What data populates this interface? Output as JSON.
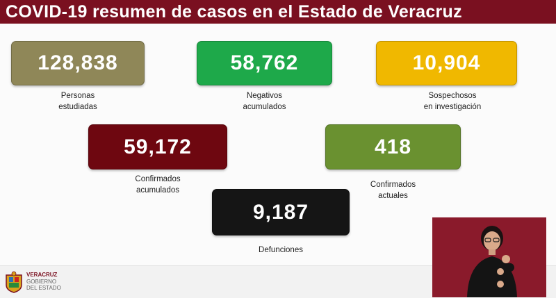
{
  "title": "COVID-19 resumen de casos en el Estado de Veracruz",
  "stats": [
    {
      "key": "estudiadas",
      "value": "128,838",
      "label_line1": "Personas",
      "label_line2": "estudiadas",
      "color": "#8f8758"
    },
    {
      "key": "negativos",
      "value": "58,762",
      "label_line1": "Negativos",
      "label_line2": "acumulados",
      "color": "#1ea94a"
    },
    {
      "key": "sospechosos",
      "value": "10,904",
      "label_line1": "Sospechosos",
      "label_line2": "en investigación",
      "color": "#f0b800"
    },
    {
      "key": "confirmados_acum",
      "value": "59,172",
      "label_line1": "Confirmados",
      "label_line2": "acumulados",
      "color": "#6e0710"
    },
    {
      "key": "confirmados_act",
      "value": "418",
      "label_line1": "Confirmados",
      "label_line2": "actuales",
      "color": "#6a9130"
    },
    {
      "key": "defunciones",
      "value": "9,187",
      "label_line1": "Defunciones",
      "label_line2": "",
      "color": "#151515"
    }
  ],
  "footer": {
    "logo_line1": "VERACRUZ",
    "logo_line2": "GOBIERNO",
    "logo_line3": "DEL ESTADO"
  }
}
